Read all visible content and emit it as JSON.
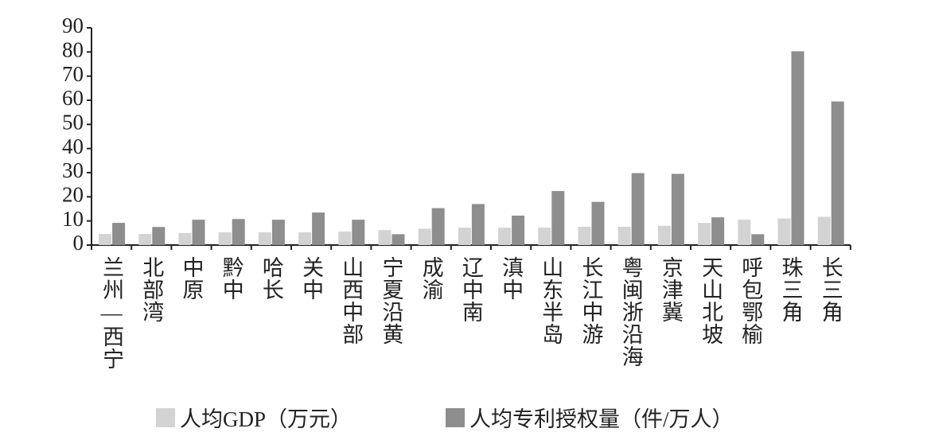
{
  "chart_data": {
    "type": "bar",
    "categories": [
      "兰州—西宁",
      "北部湾",
      "中原",
      "黔中",
      "哈长",
      "关中",
      "山西中部",
      "宁夏沿黄",
      "成渝",
      "辽中南",
      "滇中",
      "山东半岛",
      "长江中游",
      "粤闽浙沿海",
      "京津冀",
      "天山北坡",
      "呼包鄂榆",
      "珠三角",
      "长三角"
    ],
    "series": [
      {
        "name": "人均GDP（万元）",
        "color": "#d3d3d3",
        "values": [
          4.6,
          4.6,
          5.0,
          5.3,
          5.3,
          5.3,
          5.6,
          6.2,
          6.8,
          7.2,
          7.2,
          7.2,
          7.6,
          7.6,
          8.0,
          9.2,
          10.5,
          11.0,
          11.7
        ]
      },
      {
        "name": "人均专利授权量（件/万人）",
        "color": "#8e8e8e",
        "values": [
          9.2,
          7.5,
          10.5,
          10.8,
          10.5,
          13.5,
          10.5,
          4.5,
          15.3,
          17.0,
          12.2,
          22.4,
          17.9,
          29.8,
          29.5,
          11.5,
          4.5,
          80.3,
          59.5
        ]
      }
    ],
    "ylim": [
      0,
      90
    ],
    "yticks": [
      0,
      10,
      20,
      30,
      40,
      50,
      60,
      70,
      80,
      90
    ],
    "grid": false
  }
}
